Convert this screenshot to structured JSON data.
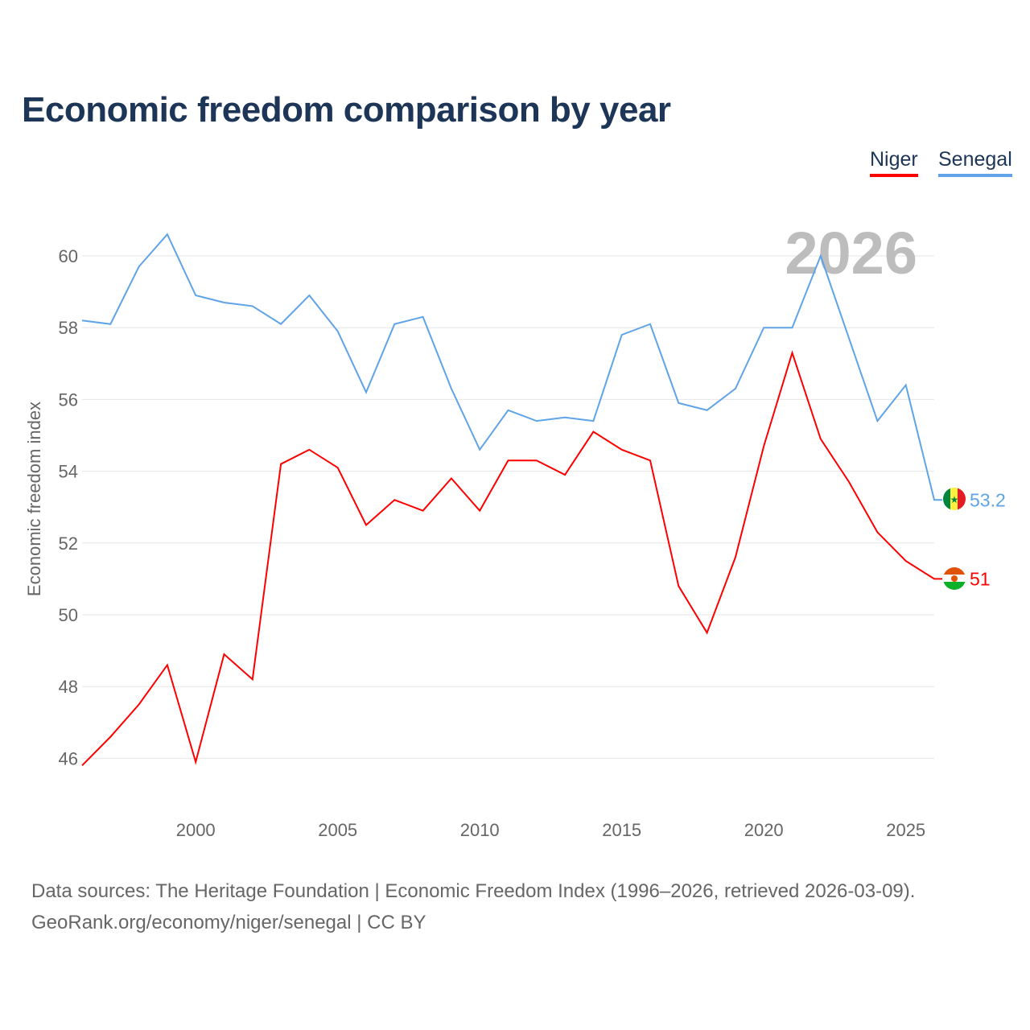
{
  "title": "Economic freedom comparison by year",
  "legend": {
    "niger": "Niger",
    "senegal": "Senegal"
  },
  "footer": {
    "line1": "Data sources: The Heritage Foundation | Economic Freedom Index (1996–2026, retrieved 2026-03-09).",
    "line2": "GeoRank.org/economy/niger/senegal | CC BY"
  },
  "chart_data": {
    "type": "line",
    "title": "Economic freedom comparison by year",
    "xlabel": "",
    "ylabel": "Economic freedom index",
    "year_label": "2026",
    "xlim": [
      1996,
      2026
    ],
    "ylim": [
      45,
      61.5
    ],
    "x_ticks": [
      2000,
      2005,
      2010,
      2015,
      2020,
      2025
    ],
    "y_ticks": [
      46,
      48,
      50,
      52,
      54,
      56,
      58,
      60
    ],
    "x": [
      1996,
      1997,
      1998,
      1999,
      2000,
      2001,
      2002,
      2003,
      2004,
      2005,
      2006,
      2007,
      2008,
      2009,
      2010,
      2011,
      2012,
      2013,
      2014,
      2015,
      2016,
      2017,
      2018,
      2019,
      2020,
      2021,
      2022,
      2023,
      2024,
      2025,
      2026
    ],
    "series": [
      {
        "name": "Niger",
        "color": "#ff0000",
        "end_label": "51",
        "values": [
          45.8,
          46.6,
          47.5,
          48.6,
          45.9,
          48.9,
          48.2,
          54.2,
          54.6,
          54.1,
          52.5,
          53.2,
          52.9,
          53.8,
          52.9,
          54.3,
          54.3,
          53.9,
          55.1,
          54.6,
          54.3,
          50.8,
          49.5,
          51.6,
          54.7,
          57.3,
          54.9,
          53.7,
          52.3,
          51.5,
          51.0
        ]
      },
      {
        "name": "Senegal",
        "color": "#5fa3e8",
        "end_label": "53.2",
        "values": [
          58.2,
          58.1,
          59.7,
          60.6,
          58.9,
          58.7,
          58.6,
          58.1,
          58.9,
          57.9,
          56.2,
          58.1,
          58.3,
          56.3,
          54.6,
          55.7,
          55.4,
          55.5,
          55.4,
          57.8,
          58.1,
          55.9,
          55.7,
          56.3,
          58.0,
          58.0,
          60.0,
          57.7,
          55.4,
          56.4,
          53.2
        ]
      }
    ]
  }
}
